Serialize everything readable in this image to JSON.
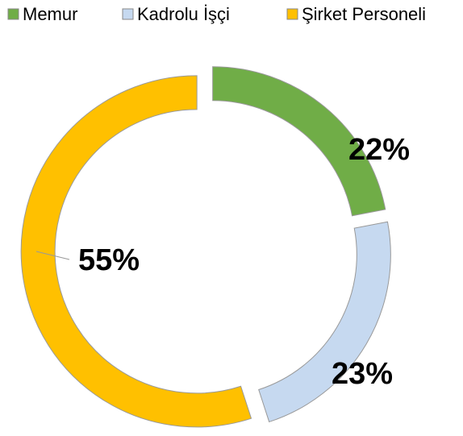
{
  "chart_data": {
    "type": "pie",
    "categories": [
      "Memur",
      "Kadrolu İşçi",
      "Şirket Personeli"
    ],
    "values": [
      22,
      23,
      55
    ],
    "value_labels": [
      "22%",
      "23%",
      "55%"
    ],
    "colors": [
      "#70ad47",
      "#c6d9f0",
      "#ffc000"
    ]
  }
}
